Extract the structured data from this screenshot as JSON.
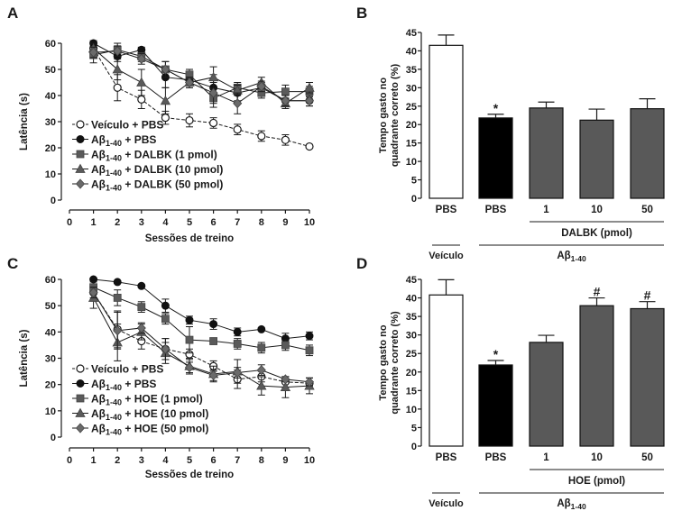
{
  "chart_data": [
    {
      "panel": "A",
      "type": "line",
      "xlabel": "Sessões de treino",
      "ylabel": "Latência (s)",
      "xlim": [
        0,
        10
      ],
      "ylim": [
        0,
        60
      ],
      "xticks": [
        "0",
        "1",
        "2",
        "3",
        "4",
        "5",
        "6",
        "7",
        "8",
        "9",
        "10"
      ],
      "yticks": [
        "0",
        "10",
        "20",
        "30",
        "40",
        "50",
        "60"
      ],
      "legend_position": "bottom-left",
      "x": [
        1,
        2,
        3,
        4,
        5,
        6,
        7,
        8,
        9,
        10
      ],
      "series": [
        {
          "name": "Veículo + PBS",
          "legend_main": "Veículo + PBS",
          "legend_sub": "",
          "legend_rest": "",
          "marker": "circle-open",
          "dashed": true,
          "values": [
            58,
            43,
            38.5,
            31.5,
            30.5,
            29.5,
            27,
            24.5,
            23,
            20.5
          ],
          "errors": [
            2,
            5,
            3.5,
            2.5,
            2.5,
            2,
            2,
            2,
            2,
            0.5
          ]
        },
        {
          "name": "Aβ1-40 + PBS",
          "legend_main": "Aβ",
          "legend_sub": "1-40",
          "legend_rest": " + PBS",
          "marker": "circle-filled",
          "dashed": false,
          "values": [
            60,
            55,
            57.5,
            47,
            46,
            43,
            41,
            43,
            38,
            38
          ],
          "errors": [
            1,
            2,
            1,
            4,
            2,
            5,
            3,
            2,
            2,
            2
          ]
        },
        {
          "name": "Aβ1-40 + DALBK (1 pmol)",
          "legend_main": "Aβ",
          "legend_sub": "1-40",
          "legend_rest": " + DALBK (1 pmol)",
          "marker": "square",
          "dashed": false,
          "values": [
            55.5,
            57.5,
            55,
            50,
            48,
            39,
            43,
            41,
            41.5,
            41.5
          ],
          "errors": [
            3,
            2.5,
            2,
            3,
            2,
            3.5,
            2,
            2,
            2.5,
            2
          ]
        },
        {
          "name": "Aβ1-40 + DALBK (10 pmol)",
          "legend_main": "Aβ",
          "legend_sub": "1-40",
          "legend_rest": " + DALBK (10 pmol)",
          "marker": "triangle",
          "dashed": false,
          "values": [
            58,
            50,
            45,
            38,
            45,
            47,
            42,
            45,
            37,
            43
          ],
          "errors": [
            2,
            4,
            5,
            5,
            2,
            4,
            2,
            2,
            2,
            2
          ]
        },
        {
          "name": "Aβ1-40 + DALBK (50 pmol)",
          "legend_main": "Aβ",
          "legend_sub": "1-40",
          "legend_rest": " + DALBK (50 pmol)",
          "marker": "diamond",
          "dashed": false,
          "values": [
            56.5,
            57,
            54,
            50,
            45,
            41,
            37,
            43.5,
            38,
            38
          ],
          "errors": [
            2,
            2,
            2,
            3,
            2,
            4,
            4,
            2,
            2,
            2
          ]
        }
      ]
    },
    {
      "panel": "B",
      "type": "bar",
      "ylabel_line1": "Tempo gasto no",
      "ylabel_line2": "quadrante correto (%)",
      "ylim": [
        0,
        45
      ],
      "yticks": [
        "0",
        "5",
        "10",
        "15",
        "20",
        "25",
        "30",
        "35",
        "40",
        "45"
      ],
      "categories": [
        "PBS",
        "PBS",
        "1",
        "10",
        "50"
      ],
      "values": [
        41.5,
        21.8,
        24.5,
        21.2,
        24.3
      ],
      "errors": [
        2.8,
        1.0,
        1.6,
        3.0,
        2.7
      ],
      "bar_colors": [
        "#ffffff",
        "#000000",
        "#595959",
        "#595959",
        "#595959"
      ],
      "annotations": [
        "",
        "*",
        "",
        "",
        ""
      ],
      "group_label_drug": "DALBK (pmol)",
      "group_label_vehicle": "Veículo",
      "group_label_abeta_main": "Aβ",
      "group_label_abeta_sub": "1-40"
    },
    {
      "panel": "C",
      "type": "line",
      "xlabel": "Sessões de treino",
      "ylabel": "Latência (s)",
      "xlim": [
        0,
        10
      ],
      "ylim": [
        0,
        60
      ],
      "xticks": [
        "0",
        "1",
        "2",
        "3",
        "4",
        "5",
        "6",
        "7",
        "8",
        "9",
        "10"
      ],
      "yticks": [
        "0",
        "10",
        "20",
        "30",
        "40",
        "50",
        "60"
      ],
      "legend_position": "bottom-left",
      "x": [
        1,
        2,
        3,
        4,
        5,
        6,
        7,
        8,
        9,
        10
      ],
      "series": [
        {
          "name": "Veículo + PBS",
          "legend_main": "Veículo + PBS",
          "legend_sub": "",
          "legend_rest": "",
          "marker": "circle-open",
          "dashed": true,
          "values": [
            55,
            41,
            36.5,
            33.5,
            31.5,
            27,
            22,
            23,
            21,
            20.5
          ],
          "errors": [
            3,
            7,
            3,
            4,
            2,
            2,
            3.5,
            2,
            2,
            2
          ]
        },
        {
          "name": "Aβ1-40 + PBS",
          "legend_main": "Aβ",
          "legend_sub": "1-40",
          "legend_rest": " + PBS",
          "marker": "circle-filled",
          "dashed": false,
          "values": [
            60,
            59,
            57.5,
            50,
            44.5,
            43,
            40,
            41,
            37.5,
            38.5
          ],
          "errors": [
            0.5,
            0.5,
            0.5,
            2.5,
            1.5,
            2,
            1.5,
            0.5,
            2,
            1.5
          ]
        },
        {
          "name": "Aβ1-40 + HOE (1 pmol)",
          "legend_main": "Aβ",
          "legend_sub": "1-40",
          "legend_rest": " + HOE (1 pmol)",
          "marker": "square",
          "dashed": false,
          "values": [
            57,
            53,
            49.5,
            45,
            37,
            36.5,
            35.5,
            34,
            35,
            33
          ],
          "errors": [
            2,
            3,
            2,
            2,
            5,
            1,
            2,
            2,
            2,
            2
          ]
        },
        {
          "name": "Aβ1-40 + HOE (10 pmol)",
          "legend_main": "Aβ",
          "legend_sub": "1-40",
          "legend_rest": " + HOE (10 pmol)",
          "marker": "triangle",
          "dashed": false,
          "values": [
            53,
            36,
            40,
            32,
            27,
            24,
            25,
            19.5,
            19,
            19.5
          ],
          "errors": [
            4,
            7,
            3,
            4,
            3,
            3,
            4.5,
            3.5,
            4,
            3
          ]
        },
        {
          "name": "Aβ1-40 + HOE (50 pmol)",
          "legend_main": "Aβ",
          "legend_sub": "1-40",
          "legend_rest": " + HOE (50 pmol)",
          "marker": "diamond",
          "dashed": false,
          "values": [
            55,
            40.5,
            41.5,
            33.5,
            26.5,
            23.5,
            24.5,
            25.5,
            22,
            21
          ],
          "errors": [
            2,
            7,
            2,
            4,
            2,
            2,
            2,
            2,
            1,
            1.5
          ]
        }
      ]
    },
    {
      "panel": "D",
      "type": "bar",
      "ylabel_line1": "Tempo gasto no",
      "ylabel_line2": "quadrante correto (%)",
      "ylim": [
        0,
        45
      ],
      "yticks": [
        "0",
        "5",
        "10",
        "15",
        "20",
        "25",
        "30",
        "35",
        "40",
        "45"
      ],
      "categories": [
        "PBS",
        "PBS",
        "1",
        "10",
        "50"
      ],
      "values": [
        40.8,
        21.9,
        28.0,
        37.9,
        37.1
      ],
      "errors": [
        4.1,
        1.2,
        1.9,
        2.1,
        1.9
      ],
      "bar_colors": [
        "#ffffff",
        "#000000",
        "#595959",
        "#595959",
        "#595959"
      ],
      "annotations": [
        "",
        "*",
        "",
        "#",
        "#"
      ],
      "group_label_drug": "HOE (pmol)",
      "group_label_vehicle": "Veículo",
      "group_label_abeta_main": "Aβ",
      "group_label_abeta_sub": "1-40"
    }
  ],
  "panel_labels": [
    "A",
    "B",
    "C",
    "D"
  ],
  "colors": {
    "ink": "#1a1a1a",
    "gray_marker": "#5a5a5a",
    "bar_gray": "#595959"
  }
}
